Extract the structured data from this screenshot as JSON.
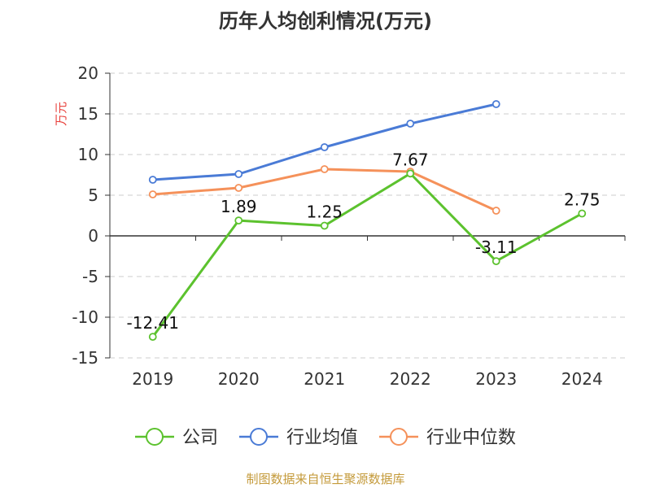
{
  "chart_data": {
    "type": "line",
    "title": "历年人均创利情况(万元)",
    "ylabel": "万元",
    "xlabel": "",
    "categories": [
      "2019",
      "2020",
      "2021",
      "2022",
      "2023",
      "2024"
    ],
    "ylim": [
      -15,
      20
    ],
    "yticks": [
      20,
      15,
      10,
      5,
      0,
      -5,
      -10,
      -15
    ],
    "grid": true,
    "legend_position": "bottom",
    "series": [
      {
        "name": "公司",
        "color": "#5cc22e",
        "values": [
          -12.41,
          1.89,
          1.25,
          7.67,
          -3.11,
          2.75
        ],
        "labels": [
          "-12.41",
          "1.89",
          "1.25",
          "7.67",
          "-3.11",
          "2.75"
        ]
      },
      {
        "name": "行业均值",
        "color": "#4a7bd6",
        "values": [
          6.9,
          7.6,
          10.9,
          13.8,
          16.2,
          null
        ]
      },
      {
        "name": "行业中位数",
        "color": "#f5915a",
        "values": [
          5.1,
          5.9,
          8.2,
          7.9,
          3.1,
          null
        ]
      }
    ]
  },
  "source": "制图数据来自恒生聚源数据库"
}
